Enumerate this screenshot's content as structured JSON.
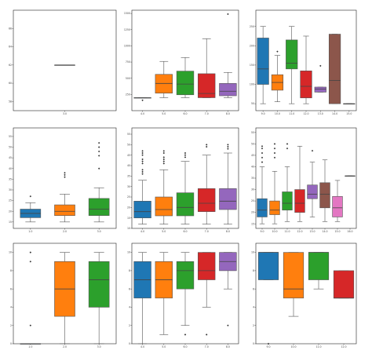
{
  "colors": {
    "palette": [
      "#1f77b4",
      "#ff7f0e",
      "#2ca02c",
      "#d62728",
      "#9467bd",
      "#8c564b",
      "#e377c2"
    ],
    "frame": "#222222",
    "whisker": "#555555"
  },
  "chart_data": [
    {
      "type": "box",
      "categories": [
        "3.0"
      ],
      "ylim": [
        57,
        68
      ],
      "yticks": [
        "58",
        "60",
        "62",
        "64",
        "66"
      ],
      "xlabel": "",
      "series": [
        {
          "cat": "3.0",
          "q1": 62,
          "median": 62,
          "q3": 62,
          "whislo": 62,
          "whishi": 62,
          "fliers": [],
          "color": "#1f77b4"
        }
      ]
    },
    {
      "type": "box",
      "categories": [
        "4.0",
        "5.0",
        "6.0",
        "7.0",
        "8.0"
      ],
      "ylim": [
        0,
        1550
      ],
      "yticks": [
        "250",
        "500",
        "750",
        "1000",
        "1250",
        "1500"
      ],
      "xlabel": "",
      "series": [
        {
          "cat": "4.0",
          "q1": 200,
          "median": 200,
          "q3": 200,
          "whislo": 200,
          "whishi": 200,
          "fliers": [
            160
          ],
          "color": "#1f77b4"
        },
        {
          "cat": "5.0",
          "q1": 270,
          "median": 420,
          "q3": 560,
          "whislo": 200,
          "whishi": 760,
          "fliers": [],
          "color": "#ff7f0e"
        },
        {
          "cat": "6.0",
          "q1": 245,
          "median": 410,
          "q3": 610,
          "whislo": 200,
          "whishi": 820,
          "fliers": [],
          "color": "#2ca02c"
        },
        {
          "cat": "7.0",
          "q1": 200,
          "median": 265,
          "q3": 570,
          "whislo": 200,
          "whishi": 1110,
          "fliers": [],
          "color": "#d62728"
        },
        {
          "cat": "8.0",
          "q1": 230,
          "median": 300,
          "q3": 420,
          "whislo": 200,
          "whishi": 590,
          "fliers": [
            1490
          ],
          "color": "#9467bd"
        }
      ]
    },
    {
      "type": "box",
      "categories": [
        "9.0",
        "10.0",
        "11.0",
        "12.0",
        "13.0",
        "14.0",
        "15.0"
      ],
      "ylim": [
        32,
        292
      ],
      "yticks": [
        "50",
        "100",
        "150",
        "200",
        "250"
      ],
      "xlabel": "",
      "series": [
        {
          "cat": "9.0",
          "q1": 100,
          "median": 140,
          "q3": 220,
          "whislo": 50,
          "whishi": 250,
          "fliers": [],
          "color": "#1f77b4"
        },
        {
          "cat": "10.0",
          "q1": 85,
          "median": 105,
          "q3": 125,
          "whislo": 55,
          "whishi": 175,
          "fliers": [
            185
          ],
          "color": "#ff7f0e"
        },
        {
          "cat": "11.0",
          "q1": 140,
          "median": 155,
          "q3": 215,
          "whislo": 50,
          "whishi": 250,
          "fliers": [],
          "color": "#2ca02c"
        },
        {
          "cat": "12.0",
          "q1": 65,
          "median": 95,
          "q3": 135,
          "whislo": 50,
          "whishi": 225,
          "fliers": [],
          "color": "#d62728"
        },
        {
          "cat": "13.0",
          "q1": 80,
          "median": 88,
          "q3": 93,
          "whislo": 80,
          "whishi": 93,
          "fliers": [
            148
          ],
          "color": "#9467bd"
        },
        {
          "cat": "14.0",
          "q1": 50,
          "median": 110,
          "q3": 230,
          "whislo": 50,
          "whishi": 230,
          "fliers": [],
          "color": "#8c564b"
        },
        {
          "cat": "15.0",
          "q1": 50,
          "median": 50,
          "q3": 50,
          "whislo": 50,
          "whishi": 50,
          "fliers": [],
          "color": "#e377c2"
        }
      ]
    },
    {
      "type": "box",
      "categories": [
        "1.0",
        "2.0",
        "3.0"
      ],
      "ylim": [
        12,
        59
      ],
      "yticks": [
        "15",
        "20",
        "25",
        "30",
        "35",
        "40",
        "45",
        "50",
        "55"
      ],
      "xlabel": "",
      "series": [
        {
          "cat": "1.0",
          "q1": 17,
          "median": 19,
          "q3": 21,
          "whislo": 15,
          "whishi": 24,
          "fliers": [
            27
          ],
          "color": "#1f77b4"
        },
        {
          "cat": "2.0",
          "q1": 18,
          "median": 20,
          "q3": 23,
          "whislo": 15,
          "whishi": 28,
          "fliers": [
            36,
            37,
            38
          ],
          "color": "#ff7f0e"
        },
        {
          "cat": "3.0",
          "q1": 18,
          "median": 21,
          "q3": 26,
          "whislo": 15,
          "whishi": 31,
          "fliers": [
            40,
            46,
            48,
            50,
            52
          ],
          "color": "#2ca02c"
        }
      ]
    },
    {
      "type": "box",
      "categories": [
        "4.0",
        "5.0",
        "6.0",
        "7.0",
        "8.0"
      ],
      "ylim": [
        10,
        58
      ],
      "yticks": [
        "10",
        "15",
        "20",
        "25",
        "30",
        "35",
        "40",
        "45",
        "50",
        "55"
      ],
      "xlabel": "",
      "series": [
        {
          "cat": "4.0",
          "q1": 15,
          "median": 18,
          "q3": 23,
          "whislo": 12,
          "whishi": 33,
          "fliers": [
            36,
            37,
            38,
            41,
            42,
            43,
            45,
            46,
            47
          ],
          "color": "#1f77b4"
        },
        {
          "cat": "5.0",
          "q1": 16,
          "median": 19,
          "q3": 25,
          "whislo": 12,
          "whishi": 38,
          "fliers": [
            41,
            42,
            43,
            44,
            46,
            47
          ],
          "color": "#ff7f0e"
        },
        {
          "cat": "6.0",
          "q1": 16,
          "median": 20,
          "q3": 27,
          "whislo": 12,
          "whishi": 42,
          "fliers": [
            44,
            45,
            46
          ],
          "color": "#2ca02c"
        },
        {
          "cat": "7.0",
          "q1": 18,
          "median": 22,
          "q3": 29,
          "whislo": 12,
          "whishi": 45,
          "fliers": [
            49,
            50
          ],
          "color": "#d62728"
        },
        {
          "cat": "8.0",
          "q1": 19,
          "median": 23,
          "q3": 29,
          "whislo": 12,
          "whishi": 46,
          "fliers": [
            48,
            49,
            50
          ],
          "color": "#9467bd"
        }
      ]
    },
    {
      "type": "box",
      "categories": [
        "9.0",
        "10.0",
        "11.0",
        "12.0",
        "13.0",
        "14.0",
        "15.0",
        "16.0"
      ],
      "ylim": [
        13,
        57
      ],
      "yticks": [
        "15",
        "20",
        "25",
        "30",
        "35",
        "40",
        "45",
        "50",
        "55"
      ],
      "xlabel": "",
      "series": [
        {
          "cat": "9.0",
          "q1": 18,
          "median": 21,
          "q3": 26,
          "whislo": 15,
          "whishi": 40,
          "fliers": [
            42,
            44,
            46,
            48,
            49
          ],
          "color": "#1f77b4"
        },
        {
          "cat": "10.0",
          "q1": 19,
          "median": 21,
          "q3": 25,
          "whislo": 15,
          "whishi": 38,
          "fliers": [
            44,
            46,
            48,
            50
          ],
          "color": "#ff7f0e"
        },
        {
          "cat": "11.0",
          "q1": 21,
          "median": 24,
          "q3": 29,
          "whislo": 16,
          "whishi": 40,
          "fliers": [
            48,
            50
          ],
          "color": "#2ca02c"
        },
        {
          "cat": "12.0",
          "q1": 20,
          "median": 24,
          "q3": 30,
          "whislo": 16,
          "whishi": 49,
          "fliers": [],
          "color": "#d62728"
        },
        {
          "cat": "13.0",
          "q1": 26,
          "median": 28,
          "q3": 32,
          "whislo": 18,
          "whishi": 42,
          "fliers": [
            47
          ],
          "color": "#9467bd"
        },
        {
          "cat": "14.0",
          "q1": 22,
          "median": 28,
          "q3": 33,
          "whislo": 16,
          "whishi": 43,
          "fliers": [],
          "color": "#8c564b"
        },
        {
          "cat": "15.0",
          "q1": 18,
          "median": 22,
          "q3": 27,
          "whislo": 16,
          "whishi": 34,
          "fliers": [],
          "color": "#e377c2"
        },
        {
          "cat": "16.0",
          "q1": 36,
          "median": 36,
          "q3": 36,
          "whislo": 36,
          "whishi": 36,
          "fliers": [],
          "color": "#7f7f7f"
        }
      ]
    },
    {
      "type": "box",
      "categories": [
        "1.0",
        "2.0",
        "3.0"
      ],
      "ylim": [
        0,
        11
      ],
      "yticks": [
        "0",
        "2",
        "4",
        "6",
        "8",
        "10"
      ],
      "xlabel": "",
      "series": [
        {
          "cat": "1.0",
          "q1": 0,
          "median": 0,
          "q3": 0,
          "whislo": 0,
          "whishi": 0,
          "fliers": [
            2,
            9,
            10
          ],
          "color": "#1f77b4"
        },
        {
          "cat": "2.0",
          "q1": 3,
          "median": 6,
          "q3": 9,
          "whislo": 0,
          "whishi": 10,
          "fliers": [],
          "color": "#ff7f0e"
        },
        {
          "cat": "3.0",
          "q1": 4,
          "median": 7,
          "q3": 9,
          "whislo": 0,
          "whishi": 10,
          "fliers": [],
          "color": "#2ca02c"
        }
      ]
    },
    {
      "type": "box",
      "categories": [
        "4.0",
        "5.0",
        "6.0",
        "7.0",
        "8.0"
      ],
      "ylim": [
        0,
        11
      ],
      "yticks": [
        "0",
        "2",
        "4",
        "6",
        "8",
        "10"
      ],
      "xlabel": "",
      "series": [
        {
          "cat": "4.0",
          "q1": 5,
          "median": 7,
          "q3": 9,
          "whislo": 0,
          "whishi": 10,
          "fliers": [],
          "color": "#1f77b4"
        },
        {
          "cat": "5.0",
          "q1": 5,
          "median": 7,
          "q3": 9,
          "whislo": 1,
          "whishi": 10,
          "fliers": [],
          "color": "#ff7f0e"
        },
        {
          "cat": "6.0",
          "q1": 6,
          "median": 8,
          "q3": 9,
          "whislo": 2,
          "whishi": 10,
          "fliers": [
            1
          ],
          "color": "#2ca02c"
        },
        {
          "cat": "7.0",
          "q1": 7,
          "median": 8,
          "q3": 10,
          "whislo": 4,
          "whishi": 10,
          "fliers": [
            1
          ],
          "color": "#d62728"
        },
        {
          "cat": "8.0",
          "q1": 8,
          "median": 9,
          "q3": 10,
          "whislo": 6,
          "whishi": 10,
          "fliers": [
            2
          ],
          "color": "#9467bd"
        }
      ]
    },
    {
      "type": "box",
      "categories": [
        "9.0",
        "10.0",
        "11.0",
        "12.0"
      ],
      "ylim": [
        0,
        11
      ],
      "yticks": [
        "0",
        "2",
        "4",
        "6",
        "8",
        "10"
      ],
      "xlabel": "",
      "series": [
        {
          "cat": "9.0",
          "q1": 7,
          "median": 10,
          "q3": 10,
          "whislo": 7,
          "whishi": 10,
          "fliers": [
            0
          ],
          "color": "#1f77b4"
        },
        {
          "cat": "10.0",
          "q1": 5,
          "median": 6,
          "q3": 10,
          "whislo": 3,
          "whishi": 10,
          "fliers": [],
          "color": "#ff7f0e"
        },
        {
          "cat": "11.0",
          "q1": 7,
          "median": 10,
          "q3": 10,
          "whislo": 6,
          "whishi": 10,
          "fliers": [],
          "color": "#2ca02c"
        },
        {
          "cat": "12.0",
          "q1": 5,
          "median": 5,
          "q3": 8,
          "whislo": 5,
          "whishi": 8,
          "fliers": [],
          "color": "#d62728"
        }
      ]
    }
  ]
}
